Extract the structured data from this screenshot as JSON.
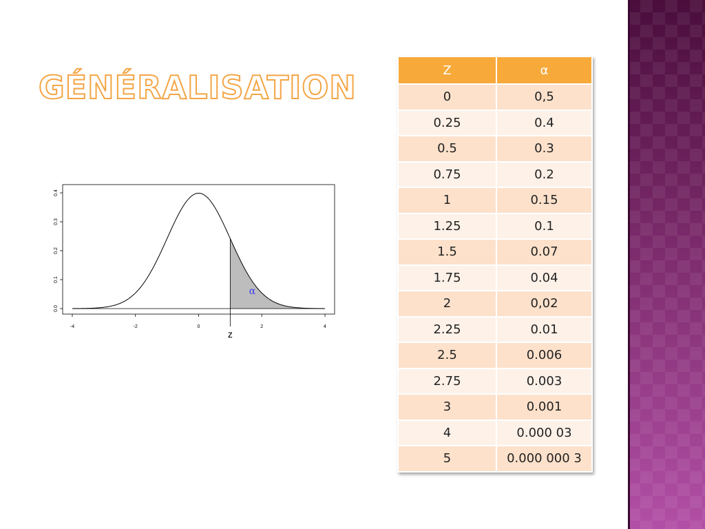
{
  "title": "Généralisation",
  "chart_data": {
    "type": "area",
    "xticks": [
      "-4",
      "-2",
      "0",
      "2",
      "4"
    ],
    "yticks": [
      "0.0",
      "0.1",
      "0.2",
      "0.3",
      "0.4"
    ],
    "xlim": [
      -4,
      4
    ],
    "ylim": [
      0,
      0.4
    ],
    "curve": "standard normal density",
    "shaded_from_x": 1,
    "annotation_marker": "z",
    "area_label": "α",
    "colors": {
      "shade": "#bdbdbd",
      "alpha_label": "#3a3af0",
      "curve": "#000000"
    }
  },
  "table": {
    "headers": [
      "Z",
      "α"
    ],
    "rows": [
      [
        "0",
        "0,5"
      ],
      [
        "0.25",
        "0.4"
      ],
      [
        "0.5",
        "0.3"
      ],
      [
        "0.75",
        "0.2"
      ],
      [
        "1",
        "0.15"
      ],
      [
        "1.25",
        "0.1"
      ],
      [
        "1.5",
        "0.07"
      ],
      [
        "1.75",
        "0.04"
      ],
      [
        "2",
        "0,02"
      ],
      [
        "2.25",
        "0.01"
      ],
      [
        "2.5",
        "0.006"
      ],
      [
        "2.75",
        "0.003"
      ],
      [
        "3",
        "0.001"
      ],
      [
        "4",
        "0.000 03"
      ],
      [
        "5",
        "0.000 000 3"
      ]
    ],
    "colors": {
      "header": "#f7a93a",
      "row_odd": "#fde1cb",
      "row_even": "#fdf1e8"
    }
  }
}
